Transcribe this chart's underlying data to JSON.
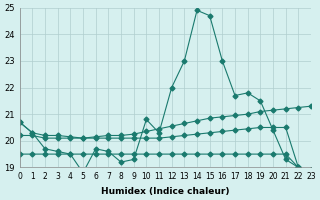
{
  "xlabel": "Humidex (Indice chaleur)",
  "xlim": [
    0,
    23
  ],
  "ylim": [
    19,
    25
  ],
  "yticks": [
    19,
    20,
    21,
    22,
    23,
    24,
    25
  ],
  "xticks": [
    0,
    1,
    2,
    3,
    4,
    5,
    6,
    7,
    8,
    9,
    10,
    11,
    12,
    13,
    14,
    15,
    16,
    17,
    18,
    19,
    20,
    21,
    22,
    23
  ],
  "background_color": "#d6f0ef",
  "grid_color": "#b0cece",
  "line_color": "#1a7a6e",
  "lines": [
    {
      "x": [
        0,
        1,
        2,
        3,
        4,
        5,
        6,
        7,
        8,
        9,
        10,
        11,
        12,
        13,
        14,
        15,
        16,
        17,
        18,
        19,
        20,
        21,
        22,
        23
      ],
      "y": [
        20.7,
        20.3,
        19.7,
        19.6,
        19.5,
        18.8,
        19.7,
        19.6,
        19.2,
        19.3,
        20.8,
        20.3,
        22.0,
        23.0,
        24.9,
        24.7,
        23.0,
        21.7,
        21.8,
        21.5,
        20.4,
        19.3,
        19.0,
        18.9
      ]
    },
    {
      "x": [
        0,
        1,
        2,
        3,
        4,
        5,
        6,
        7,
        8,
        9,
        10,
        11,
        12,
        13,
        14,
        15,
        16,
        17,
        18,
        19,
        20,
        21,
        22,
        23
      ],
      "y": [
        20.7,
        20.3,
        20.2,
        20.2,
        20.15,
        20.1,
        20.15,
        20.2,
        20.2,
        20.25,
        20.35,
        20.45,
        20.55,
        20.65,
        20.75,
        20.85,
        20.9,
        20.95,
        21.0,
        21.1,
        21.15,
        21.2,
        21.25,
        21.3
      ]
    },
    {
      "x": [
        0,
        1,
        2,
        3,
        4,
        5,
        6,
        7,
        8,
        9,
        10,
        11,
        12,
        13,
        14,
        15,
        16,
        17,
        18,
        19,
        20,
        21,
        22,
        23
      ],
      "y": [
        20.2,
        20.2,
        20.1,
        20.1,
        20.1,
        20.1,
        20.1,
        20.1,
        20.1,
        20.1,
        20.1,
        20.1,
        20.15,
        20.2,
        20.25,
        20.3,
        20.35,
        20.4,
        20.45,
        20.5,
        20.5,
        20.5,
        19.0,
        18.9
      ]
    },
    {
      "x": [
        0,
        1,
        2,
        3,
        4,
        5,
        6,
        7,
        8,
        9,
        10,
        11,
        12,
        13,
        14,
        15,
        16,
        17,
        18,
        19,
        20,
        21,
        22,
        23
      ],
      "y": [
        19.5,
        19.5,
        19.5,
        19.5,
        19.5,
        19.5,
        19.5,
        19.5,
        19.5,
        19.5,
        19.5,
        19.5,
        19.5,
        19.5,
        19.5,
        19.5,
        19.5,
        19.5,
        19.5,
        19.5,
        19.5,
        19.5,
        19.0,
        18.9
      ]
    }
  ]
}
